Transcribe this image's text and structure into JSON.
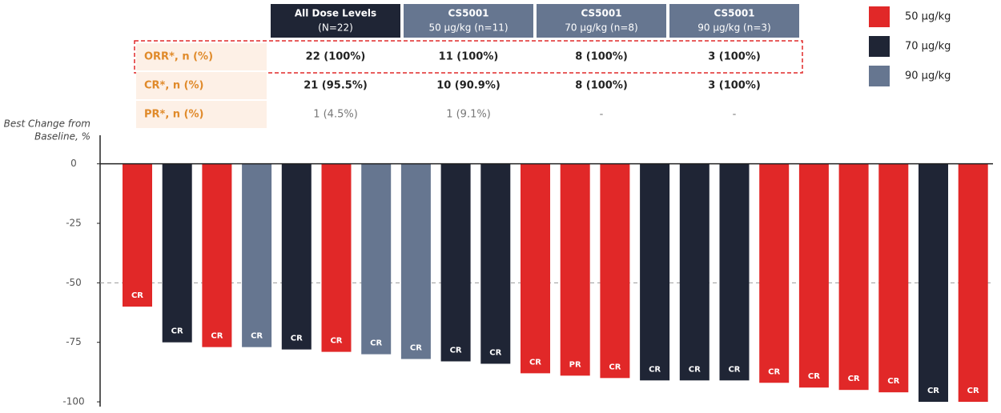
{
  "table": {
    "header": [
      [
        "All Dose Levels",
        "(N=22)"
      ],
      [
        "CS5001",
        "50 μg/kg (n=11)"
      ],
      [
        "CS5001",
        "70 μg/kg (n=8)"
      ],
      [
        "CS5001",
        "90 μg/kg (n=3)"
      ]
    ],
    "rows": [
      {
        "label": "ORR*, n (%)",
        "cells": [
          "22 (100%)",
          "11 (100%)",
          "8 (100%)",
          "3 (100%)"
        ]
      },
      {
        "label": "CR*, n (%)",
        "cells": [
          "21 (95.5%)",
          "10 (90.9%)",
          "8 (100%)",
          "3 (100%)"
        ]
      },
      {
        "label": "PR*, n (%)",
        "cells": [
          "1 (4.5%)",
          "1 (9.1%)",
          "-",
          "-"
        ]
      }
    ]
  },
  "chart_data": {
    "type": "bar",
    "y_label": [
      "Best Change from",
      "Baseline, %"
    ],
    "values": [
      -60,
      -75,
      -77,
      -77,
      -78,
      -79,
      -80,
      -82,
      -83,
      -84,
      -88,
      -89,
      -90,
      -91,
      -91,
      -91,
      -92,
      -94,
      -95,
      -96,
      -100,
      -100
    ],
    "colors": [
      "#e12828",
      "#1f2535",
      "#e12828",
      "#667690",
      "#1f2535",
      "#e12828",
      "#667690",
      "#667690",
      "#1f2535",
      "#1f2535",
      "#e12828",
      "#e12828",
      "#e12828",
      "#1f2535",
      "#1f2535",
      "#1f2535",
      "#e12828",
      "#e12828",
      "#e12828",
      "#e12828",
      "#1f2535",
      "#e12828"
    ],
    "bar_labels": [
      "CR",
      "CR",
      "CR",
      "CR",
      "CR",
      "CR",
      "CR",
      "CR",
      "CR",
      "CR",
      "CR",
      "PR",
      "CR",
      "CR",
      "CR",
      "CR",
      "CR",
      "CR",
      "CR",
      "CR",
      "CR",
      "CR"
    ],
    "ylim": [
      -102,
      12
    ],
    "yticks": [
      0,
      -25,
      -50,
      -75,
      -100
    ],
    "reference_line": -50,
    "legend": [
      {
        "name": "50 μg/kg",
        "color": "#e12828"
      },
      {
        "name": "70 μg/kg",
        "color": "#1f2535"
      },
      {
        "name": "90 μg/kg",
        "color": "#667690"
      }
    ]
  }
}
